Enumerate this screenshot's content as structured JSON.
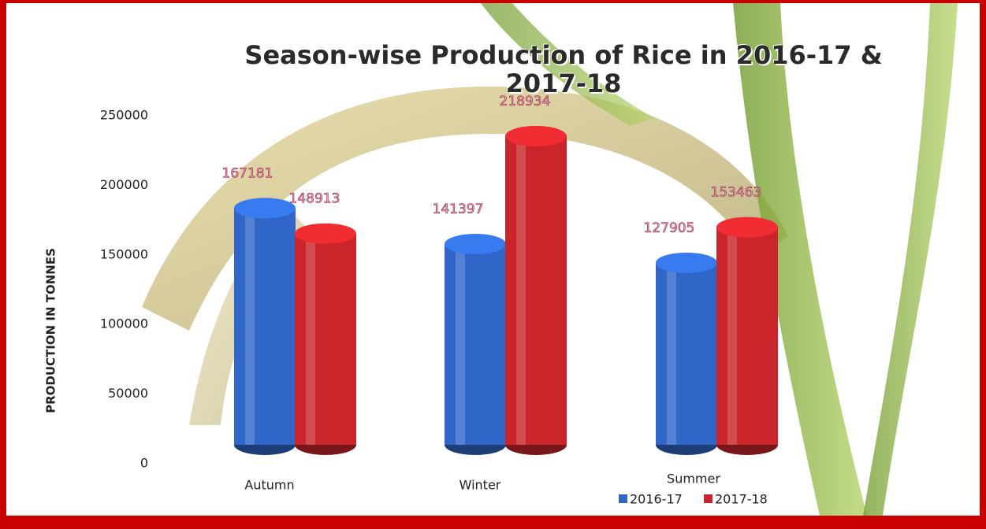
{
  "chart_data": {
    "type": "bar",
    "title": "Season-wise Production of Rice in 2016-17 & 2017-18",
    "y_label": "PRODUCTION IN TONNES",
    "categories": [
      "Autumn",
      "Winter",
      "Summer"
    ],
    "series": [
      {
        "name": "2016-17",
        "color": "#2f66c8",
        "values": [
          167181,
          141397,
          127905
        ]
      },
      {
        "name": "2017-18",
        "color": "#c9252a",
        "values": [
          148913,
          218934,
          153463
        ]
      }
    ],
    "ylim": [
      0,
      250000
    ],
    "yticks": [
      0,
      50000,
      100000,
      150000,
      200000,
      250000
    ],
    "legend": "bottom-right"
  }
}
